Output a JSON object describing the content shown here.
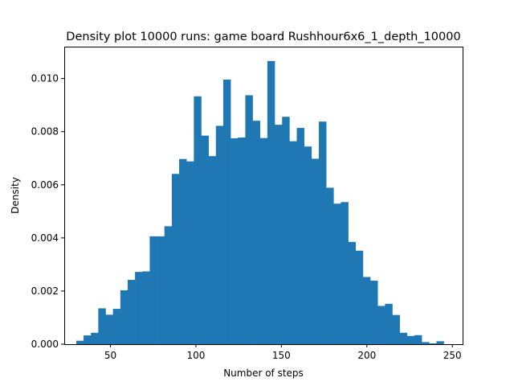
{
  "chart_data": {
    "type": "bar",
    "title": "Density plot 10000 runs: game board Rushhour6x6_1_depth_10000",
    "xlabel": "Number of steps",
    "ylabel": "Density",
    "xlim": [
      23,
      256
    ],
    "ylim": [
      0,
      0.0112
    ],
    "xticks": [
      50,
      100,
      150,
      200,
      250
    ],
    "yticks": [
      0.0,
      0.002,
      0.004,
      0.006,
      0.008,
      0.01
    ],
    "ytick_labels": [
      "0.000",
      "0.002",
      "0.004",
      "0.006",
      "0.008",
      "0.010"
    ],
    "grid": false,
    "legend": "none",
    "color": "#1f77b4",
    "bin_edges": [
      30,
      34.3,
      38.6,
      42.9,
      47.2,
      51.5,
      55.8,
      60.1,
      64.4,
      68.7,
      73.0,
      77.3,
      81.6,
      85.9,
      90.2,
      94.5,
      98.8,
      103.1,
      107.4,
      111.7,
      116.0,
      120.3,
      124.6,
      128.9,
      133.2,
      137.5,
      141.8,
      146.1,
      150.4,
      154.7,
      159.0,
      163.3,
      167.6,
      171.9,
      176.2,
      180.5,
      184.8,
      189.1,
      193.4,
      197.7,
      202.0,
      206.3,
      210.6,
      214.9,
      219.2,
      223.5,
      227.8,
      232.1,
      236.4,
      240.7,
      245.0
    ],
    "values": [
      0.00013,
      0.00033,
      0.00043,
      0.00135,
      0.00111,
      0.00133,
      0.00203,
      0.00242,
      0.00272,
      0.00274,
      0.00406,
      0.00406,
      0.00444,
      0.00641,
      0.00697,
      0.00688,
      0.00933,
      0.00785,
      0.00708,
      0.00822,
      0.00996,
      0.00775,
      0.00778,
      0.00937,
      0.00841,
      0.00776,
      0.01066,
      0.00826,
      0.00856,
      0.00764,
      0.00814,
      0.00744,
      0.00698,
      0.00838,
      0.00589,
      0.00529,
      0.00535,
      0.00385,
      0.00352,
      0.00253,
      0.00239,
      0.00144,
      0.00152,
      0.0011,
      0.00043,
      0.00031,
      0.00034,
      8e-05,
      3e-05,
      0.00011
    ]
  }
}
